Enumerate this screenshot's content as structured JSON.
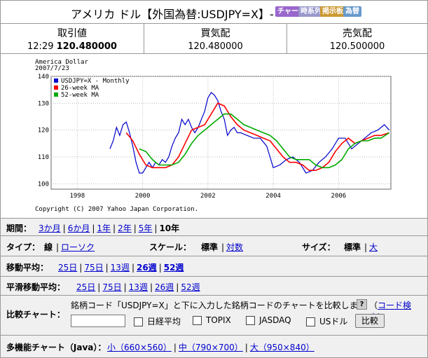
{
  "header": {
    "title": "アメリカ ドル【外国為替:USDJPY=X】-",
    "buttons": [
      "チャート",
      "時系列",
      "掲示板",
      "為替"
    ],
    "button_colors": [
      "#9966cc",
      "#9999cc",
      "#cc9933",
      "#6699cc"
    ]
  },
  "quotes": [
    {
      "label": "取引値",
      "time": "12:29",
      "value": "120.480000"
    },
    {
      "label": "買気配",
      "value": "120.480000"
    },
    {
      "label": "売気配",
      "value": "120.500000"
    }
  ],
  "chart_data": {
    "type": "line",
    "title": "America Dollar",
    "subtitle": "2007/7/23",
    "copyright": "Copyright (C) 2007 Yahoo Japan Corporation.",
    "x_ticks": [
      "1998",
      "2000",
      "2002",
      "2004",
      "2006"
    ],
    "y_ticks": [
      100,
      110,
      120,
      130,
      140
    ],
    "ylim": [
      98,
      140
    ],
    "xlim": [
      1997.2,
      2007.6
    ],
    "grid": true,
    "legend_position": "top-left",
    "series": [
      {
        "name": "USDJPY=X - Monthly",
        "color": "#0000cc",
        "x": [
          1999.0,
          1999.1,
          1999.2,
          1999.3,
          1999.4,
          1999.5,
          1999.6,
          1999.7,
          1999.8,
          1999.9,
          2000.0,
          2000.1,
          2000.2,
          2000.3,
          2000.4,
          2000.5,
          2000.6,
          2000.7,
          2000.8,
          2000.9,
          2001.0,
          2001.1,
          2001.2,
          2001.3,
          2001.4,
          2001.5,
          2001.6,
          2001.7,
          2001.8,
          2001.9,
          2002.0,
          2002.1,
          2002.2,
          2002.3,
          2002.4,
          2002.5,
          2002.6,
          2002.7,
          2002.8,
          2002.9,
          2003.0,
          2003.2,
          2003.4,
          2003.6,
          2003.8,
          2004.0,
          2004.2,
          2004.4,
          2004.6,
          2004.8,
          2005.0,
          2005.2,
          2005.4,
          2005.6,
          2005.8,
          2006.0,
          2006.2,
          2006.4,
          2006.6,
          2006.8,
          2007.0,
          2007.2,
          2007.4,
          2007.55
        ],
        "values": [
          113,
          116,
          121,
          118,
          122,
          123,
          119,
          114,
          108,
          104,
          104,
          106,
          108,
          106,
          108,
          107,
          109,
          108,
          110,
          114,
          117,
          119,
          124,
          122,
          124,
          121,
          119,
          121,
          124,
          127,
          132,
          134,
          133,
          131,
          127,
          124,
          118,
          120,
          121,
          119,
          119,
          118,
          117,
          117,
          114,
          106,
          107,
          109,
          110,
          108,
          104,
          105,
          108,
          110,
          113,
          117,
          117,
          113,
          115,
          117,
          119,
          120,
          122,
          120
        ]
      },
      {
        "name": "26-week MA",
        "color": "#ff0000",
        "x": [
          1999.5,
          1999.7,
          1999.9,
          2000.1,
          2000.3,
          2000.5,
          2000.7,
          2000.9,
          2001.1,
          2001.3,
          2001.5,
          2001.7,
          2001.9,
          2002.1,
          2002.3,
          2002.5,
          2002.7,
          2002.9,
          2003.1,
          2003.3,
          2003.5,
          2003.7,
          2003.9,
          2004.1,
          2004.3,
          2004.5,
          2004.7,
          2004.9,
          2005.1,
          2005.3,
          2005.5,
          2005.7,
          2005.9,
          2006.1,
          2006.3,
          2006.5,
          2006.7,
          2006.9,
          2007.1,
          2007.3,
          2007.55
        ],
        "values": [
          119,
          116,
          111,
          107,
          106,
          106,
          106,
          107,
          110,
          115,
          120,
          121,
          122,
          126,
          130,
          129,
          125,
          122,
          120,
          119,
          118,
          117,
          116,
          113,
          110,
          108,
          108,
          107,
          105,
          105,
          106,
          108,
          112,
          115,
          117,
          115,
          116,
          117,
          118,
          118,
          119
        ]
      },
      {
        "name": "52-week MA",
        "color": "#00aa00",
        "x": [
          1999.9,
          2000.1,
          2000.3,
          2000.5,
          2000.7,
          2000.9,
          2001.1,
          2001.3,
          2001.5,
          2001.7,
          2001.9,
          2002.1,
          2002.3,
          2002.5,
          2002.7,
          2002.9,
          2003.1,
          2003.3,
          2003.5,
          2003.7,
          2003.9,
          2004.1,
          2004.3,
          2004.5,
          2004.7,
          2004.9,
          2005.1,
          2005.3,
          2005.5,
          2005.7,
          2005.9,
          2006.1,
          2006.3,
          2006.5,
          2006.7,
          2006.9,
          2007.1,
          2007.3,
          2007.55
        ],
        "values": [
          113,
          112,
          109,
          107,
          107,
          107,
          108,
          111,
          115,
          118,
          120,
          122,
          124,
          126,
          126,
          124,
          122,
          121,
          120,
          119,
          118,
          116,
          113,
          110,
          109,
          109,
          109,
          107,
          106,
          106,
          107,
          109,
          113,
          115,
          116,
          116,
          117,
          117,
          119
        ]
      }
    ]
  },
  "period": {
    "label": "期間：",
    "items": [
      "3か月",
      "6か月",
      "1年",
      "2年",
      "5年",
      "10年"
    ],
    "selected": "10年"
  },
  "type_row": {
    "label": "タイプ：",
    "items": [
      "線",
      "ローソク"
    ],
    "selected": "線",
    "scale_label": "スケール：",
    "scale_items": [
      "標準",
      "対数"
    ],
    "scale_selected": "標準",
    "size_label": "サイズ：",
    "size_items": [
      "標準",
      "大"
    ],
    "size_selected": "標準"
  },
  "ma": {
    "label": "移動平均：",
    "items": [
      "25日",
      "75日",
      "13週",
      "26週",
      "52週"
    ],
    "bold": [
      "26週",
      "52週"
    ]
  },
  "sma": {
    "label": "平滑移動平均：",
    "items": [
      "25日",
      "75日",
      "13週",
      "26週",
      "52週"
    ]
  },
  "compare": {
    "label": "比較チャート：",
    "text": "銘柄コード「USDJPY=X」と下に入力した銘柄コードのチャートを比較します",
    "help": "?",
    "code_search": "コード検索",
    "paren_open": "（",
    "paren_close": "）",
    "checks": [
      "日経平均",
      "TOPIX",
      "JASDAQ",
      "USドル"
    ],
    "button": "比較",
    "input_value": ""
  },
  "java": {
    "label": "多機能チャート（Java）：",
    "items": [
      "小（660×560）",
      "中（790×700）",
      "大（950×840）"
    ]
  }
}
